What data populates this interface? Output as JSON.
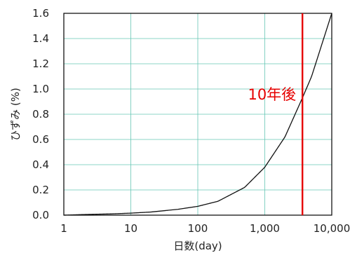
{
  "chart_data": {
    "type": "line",
    "xlabel": "日数(day)",
    "ylabel": "ひずみ (%)",
    "xscale": "log",
    "xlim": [
      1,
      10000
    ],
    "ylim": [
      0.0,
      1.6
    ],
    "grid": true,
    "x_ticks": [
      "1",
      "10",
      "100",
      "1,000",
      "10,000"
    ],
    "y_ticks": [
      "0.0",
      "0.2",
      "0.4",
      "0.6",
      "0.8",
      "1.0",
      "1.2",
      "1.4",
      "1.6"
    ],
    "series": [
      {
        "color": "#111111",
        "x": [
          1,
          2,
          5,
          10,
          20,
          50,
          100,
          200,
          500,
          1000,
          2000,
          3650,
          5000,
          10000
        ],
        "y": [
          0.0,
          0.005,
          0.01,
          0.016,
          0.025,
          0.046,
          0.07,
          0.11,
          0.22,
          0.38,
          0.62,
          0.93,
          1.1,
          1.6
        ]
      }
    ],
    "annotations": [
      {
        "type": "vline",
        "x": 3650,
        "color": "#e60000",
        "label": "10年後"
      }
    ]
  }
}
